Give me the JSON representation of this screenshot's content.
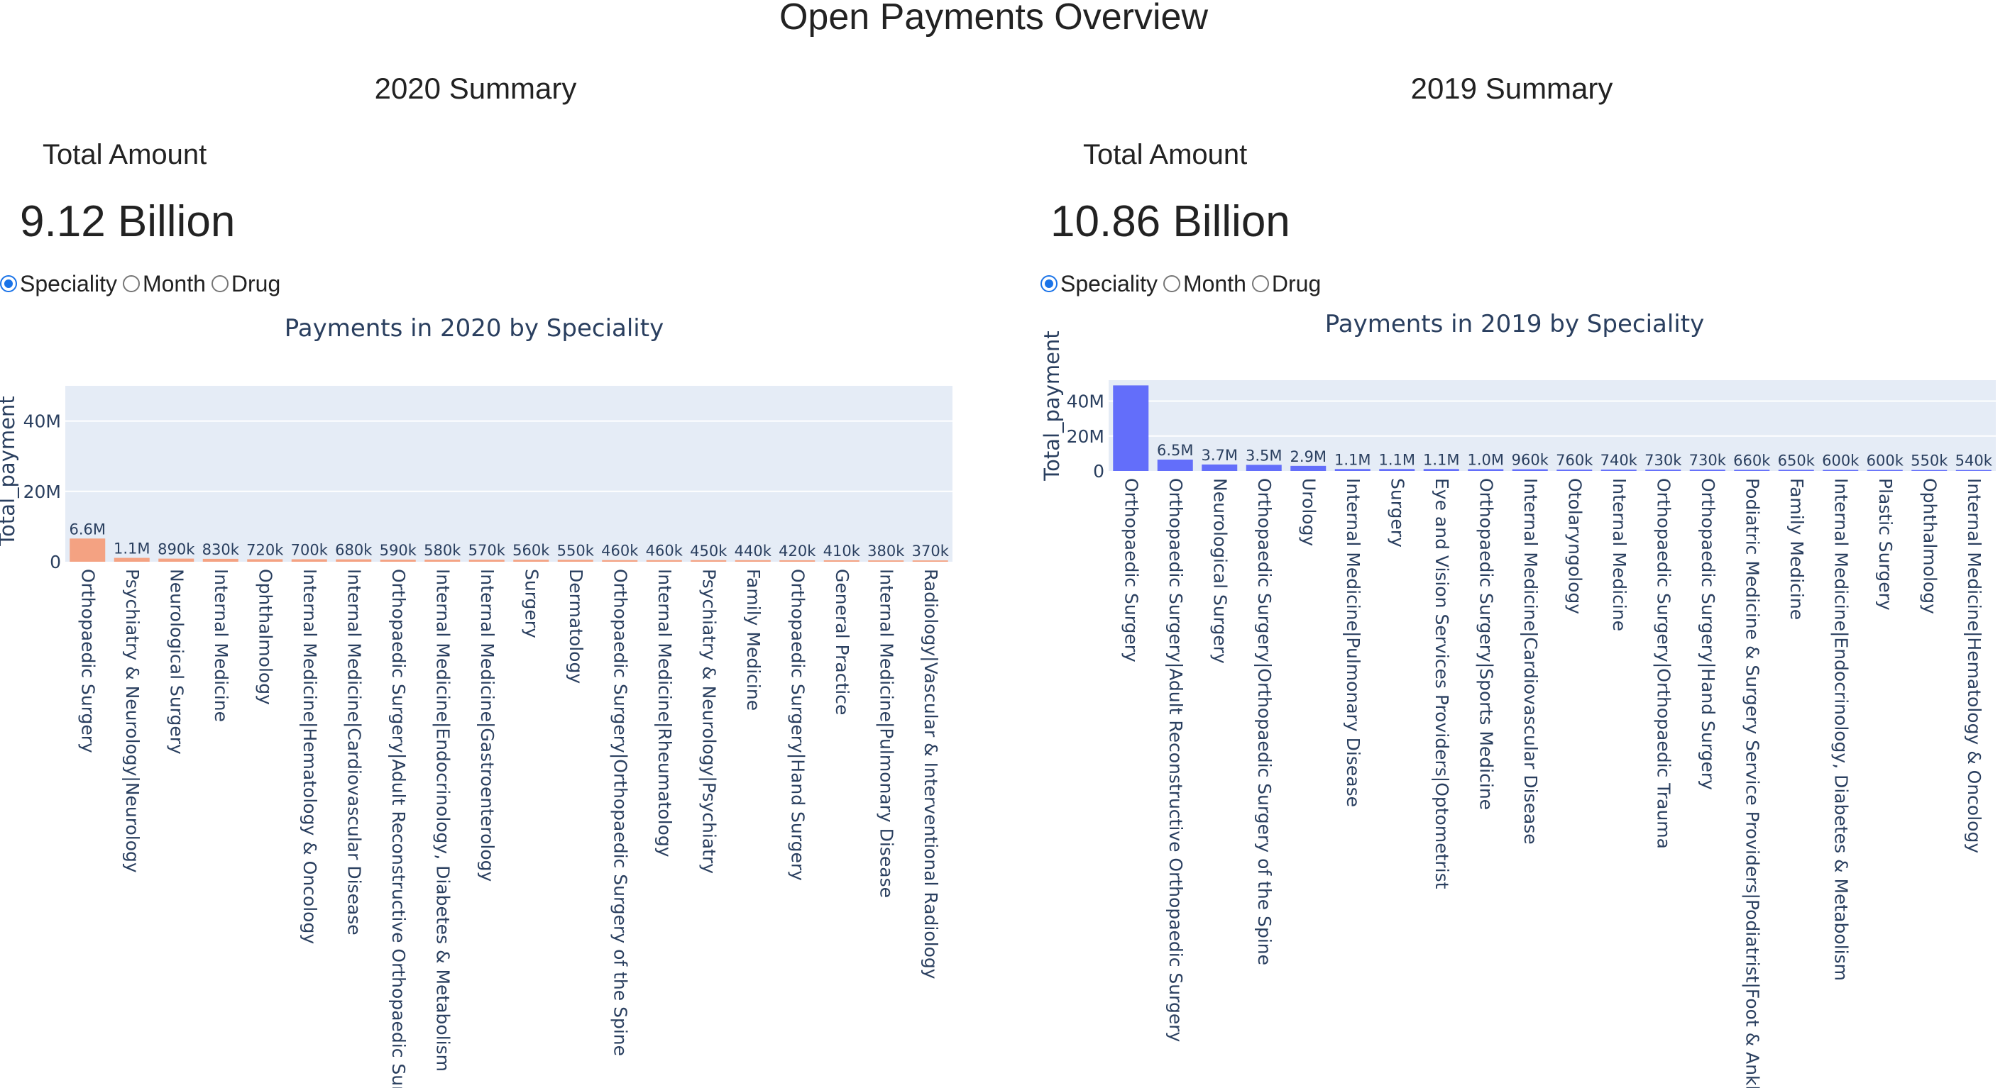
{
  "page": {
    "title": "Open Payments Overview"
  },
  "panels": [
    {
      "summary_title": "2020 Summary",
      "kpi_label": "Total Amount",
      "kpi_value": "9.12 Billion",
      "radio_options": [
        "Speciality",
        "Month",
        "Drug"
      ],
      "radio_selected": "Speciality",
      "bar_color": "#f4a282"
    },
    {
      "summary_title": "2019 Summary",
      "kpi_label": "Total Amount",
      "kpi_value": "10.86 Billion",
      "radio_options": [
        "Speciality",
        "Month",
        "Drug"
      ],
      "radio_selected": "Speciality",
      "bar_color": "#636efa"
    }
  ],
  "chart_data": [
    {
      "type": "bar",
      "title": "Payments in 2020 by Speciality",
      "xlabel": "",
      "ylabel": "Total_payment",
      "ylim": [
        0,
        50000000
      ],
      "yticks": [
        0,
        20000000,
        40000000
      ],
      "ytick_labels": [
        "0",
        "20M",
        "40M"
      ],
      "grid": true,
      "categories": [
        "Orthopaedic Surgery",
        "Psychiatry & Neurology|Neurology",
        "Neurological Surgery",
        "Internal Medicine",
        "Ophthalmology",
        "Internal Medicine|Hematology & Oncology",
        "Internal Medicine|Cardiovascular Disease",
        "Orthopaedic Surgery|Adult Reconstructive Orthopaedic Surg",
        "Internal Medicine|Endocrinology, Diabetes & Metabolism",
        "Internal Medicine|Gastroenterology",
        "Surgery",
        "Dermatology",
        "Orthopaedic Surgery|Orthopaedic Surgery of the Spine",
        "Internal Medicine|Rheumatology",
        "Psychiatry & Neurology|Psychiatry",
        "Family Medicine",
        "Orthopaedic Surgery|Hand Surgery",
        "General Practice",
        "Internal Medicine|Pulmonary Disease",
        "Radiology|Vascular & Interventional Radiology"
      ],
      "values": [
        6600000,
        1100000,
        890000,
        830000,
        720000,
        700000,
        680000,
        590000,
        580000,
        570000,
        560000,
        550000,
        460000,
        460000,
        450000,
        440000,
        420000,
        410000,
        380000,
        370000
      ],
      "value_labels": [
        "6.6M",
        "1.1M",
        "890k",
        "830k",
        "720k",
        "700k",
        "680k",
        "590k",
        "580k",
        "570k",
        "560k",
        "550k",
        "460k",
        "460k",
        "450k",
        "440k",
        "420k",
        "410k",
        "380k",
        "370k"
      ]
    },
    {
      "type": "bar",
      "title": "Payments in 2019 by Speciality",
      "xlabel": "",
      "ylabel": "Total_payment",
      "ylim": [
        0,
        52000000
      ],
      "yticks": [
        0,
        20000000,
        40000000
      ],
      "ytick_labels": [
        "0",
        "20M",
        "40M"
      ],
      "grid": true,
      "categories": [
        "Orthopaedic Surgery",
        "Orthopaedic Surgery|Adult Reconstructive Orthopaedic Surgery",
        "Neurological Surgery",
        "Orthopaedic Surgery|Orthopaedic Surgery of the Spine",
        "Urology",
        "Internal Medicine|Pulmonary Disease",
        "Surgery",
        "Eye and Vision Services Providers|Optometrist",
        "Orthopaedic Surgery|Sports Medicine",
        "Internal Medicine|Cardiovascular Disease",
        "Otolaryngology",
        "Internal Medicine",
        "Orthopaedic Surgery|Orthopaedic Trauma",
        "Orthopaedic Surgery|Hand Surgery",
        "Podiatric Medicine & Surgery Service Providers|Podiatrist|Foot & Ankle",
        "Family Medicine",
        "Internal Medicine|Endocrinology, Diabetes & Metabolism",
        "Plastic Surgery",
        "Ophthalmology",
        "Internal Medicine|Hematology & Oncology"
      ],
      "values": [
        49000000,
        6500000,
        3700000,
        3500000,
        2900000,
        1100000,
        1100000,
        1100000,
        1000000,
        960000,
        760000,
        740000,
        730000,
        730000,
        660000,
        650000,
        600000,
        600000,
        550000,
        540000
      ],
      "value_labels": [
        "",
        "6.5M",
        "3.7M",
        "3.5M",
        "2.9M",
        "1.1M",
        "1.1M",
        "1.1M",
        "1.0M",
        "960k",
        "760k",
        "740k",
        "730k",
        "730k",
        "660k",
        "650k",
        "600k",
        "600k",
        "550k",
        "540k"
      ]
    }
  ]
}
